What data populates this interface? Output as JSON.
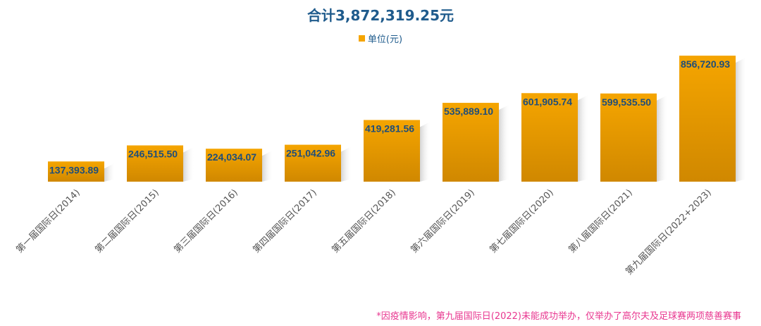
{
  "chart_data": {
    "type": "bar",
    "title": "合计3,872,319.25元",
    "categories": [
      "第一届国际日(2014)",
      "第二届国际日(2015)",
      "第三届国际日(2016)",
      "第四届国际日(2017)",
      "第五届国际日(2018)",
      "第六届国际日(2019)",
      "第七届国际日(2020)",
      "第八届国际日(2021)",
      "第九届国际日(2022+2023)"
    ],
    "series": [
      {
        "name": "单位(元)",
        "values": [
          137393.89,
          246515.5,
          224034.07,
          251042.96,
          419281.56,
          535889.1,
          601905.74,
          599535.5,
          856720.93
        ]
      }
    ],
    "data_labels": [
      "137,393.89",
      "246,515.50",
      "224,034.07",
      "251,042.96",
      "419,281.56",
      "535,889.10",
      "601,905.74",
      "599,535.50",
      "856,720.93"
    ],
    "ylim": [
      0,
      900000
    ],
    "grid": false,
    "legend_position": "top",
    "colors": {
      "bar_top": "#f5a500",
      "bar_bottom": "#d08800",
      "label": "#1f4e7a",
      "axis_label": "#555555"
    }
  },
  "footnote": "*因疫情影响，第九届国际日(2022)未能成功举办，仅举办了高尔夫及足球赛两项慈善赛事"
}
